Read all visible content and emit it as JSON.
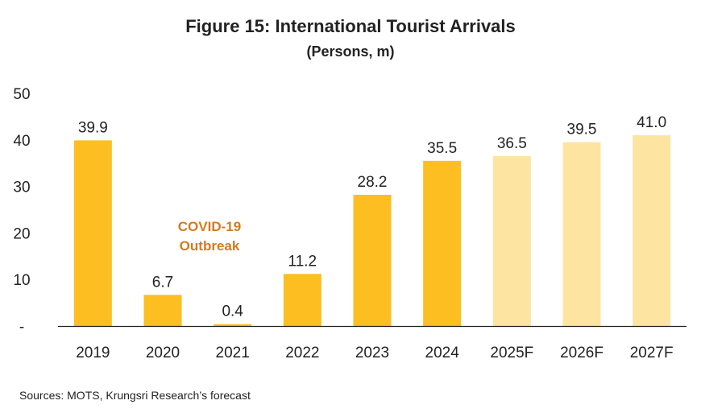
{
  "title": "Figure 15: International Tourist Arrivals",
  "subtitle": "(Persons, m)",
  "source": "Sources: MOTS, Krungsri Research’s forecast",
  "annotation": [
    "COVID-19",
    "Outbreak"
  ],
  "colors": {
    "actual": "#FDBE22",
    "forecast": "#FDE4A1",
    "annotation": "#D67A1E"
  },
  "chart_data": {
    "type": "bar",
    "categories": [
      "2019",
      "2020",
      "2021",
      "2022",
      "2023",
      "2024",
      "2025F",
      "2026F",
      "2027F"
    ],
    "values": [
      39.9,
      6.7,
      0.4,
      11.2,
      28.2,
      35.5,
      36.5,
      39.5,
      41.0
    ],
    "value_labels": [
      "39.9",
      "6.7",
      "0.4",
      "11.2",
      "28.2",
      "35.5",
      "36.5",
      "39.5",
      "41.0"
    ],
    "forecast": [
      false,
      false,
      false,
      false,
      false,
      false,
      true,
      true,
      true
    ],
    "ylim": [
      0,
      50
    ],
    "yticks": [
      0,
      10,
      20,
      30,
      40,
      50
    ],
    "ytick_labels": [
      "-",
      "10",
      "20",
      "30",
      "40",
      "50"
    ],
    "grid": false,
    "legend": "none"
  }
}
